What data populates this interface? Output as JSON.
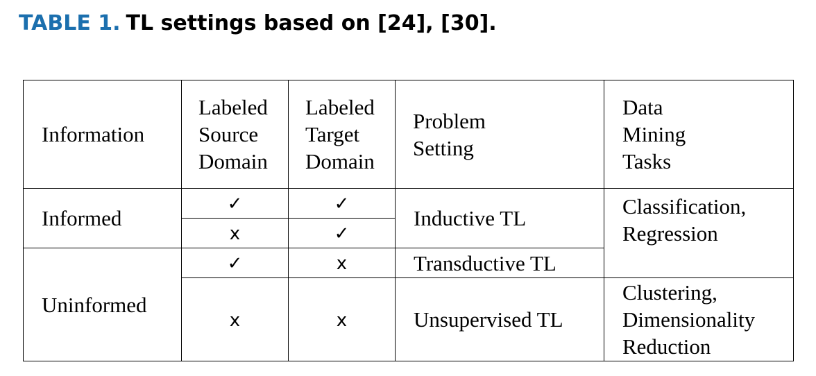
{
  "caption": {
    "label": "TABLE 1.",
    "text": "TL settings based on [24], [30]."
  },
  "table": {
    "headers": {
      "information": "Information",
      "source": [
        "Labeled",
        "Source",
        "Domain"
      ],
      "target": [
        "Labeled",
        "Target",
        "Domain"
      ],
      "problem": [
        "Problem",
        "Setting"
      ],
      "tasks": [
        "Data",
        "Mining",
        "Tasks"
      ]
    },
    "rows": {
      "informed": {
        "information": "Informed",
        "r1": {
          "source": "✓",
          "target": "✓"
        },
        "r2": {
          "source": "x",
          "target": "✓"
        },
        "problem": "Inductive TL",
        "tasks": [
          "Classification,",
          "Regression"
        ]
      },
      "uninformed": {
        "information": "Uninformed",
        "r3": {
          "source": "✓",
          "target": "x",
          "problem": "Transductive TL"
        },
        "r4": {
          "source": "x",
          "target": "x",
          "problem": "Unsupervised TL",
          "tasks": [
            "Clustering,",
            "Dimensionality",
            "Reduction"
          ]
        }
      }
    }
  }
}
